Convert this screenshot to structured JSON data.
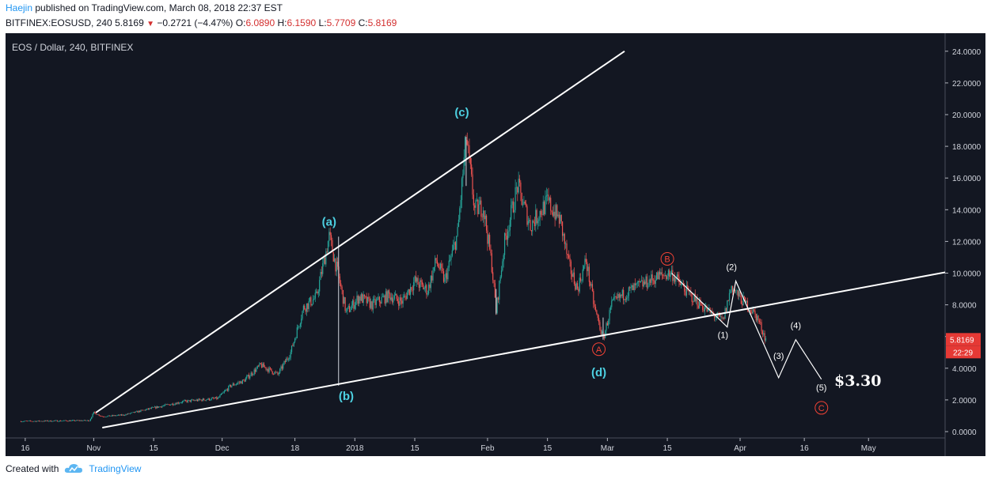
{
  "header": {
    "author": "Haejin",
    "published": "published on TradingView.com, March 08, 2018 22:37 EST",
    "symbol": "BITFINEX:EOSUSD, 240",
    "last": "5.8169",
    "change": "−0.2721 (−4.47%)",
    "o_label": "O:",
    "o_value": "6.0890",
    "h_label": "H:",
    "h_value": "6.1590",
    "l_label": "L:",
    "l_value": "5.7709",
    "c_label": "C:",
    "c_value": "5.8169"
  },
  "footer": {
    "created_with": "Created with",
    "brand": "TradingView"
  },
  "colors": {
    "background": "#131722",
    "up": "#26a69a",
    "down": "#ef5350",
    "cyan_label": "#4dd0e1",
    "red_label": "#f44336",
    "line": "#ffffff"
  },
  "chart_data": {
    "type": "candlestick",
    "title": "EOS / Dollar, 240, BITFINEX",
    "ylim": [
      -0.4,
      25.0
    ],
    "y_ticks": [
      "24.0000",
      "22.0000",
      "20.0000",
      "18.0000",
      "16.0000",
      "14.0000",
      "12.0000",
      "10.0000",
      "8.0000",
      "6.0000",
      "4.0000",
      "2.0000",
      "0.0000"
    ],
    "y_tick_values": [
      24,
      22,
      20,
      18,
      16,
      14,
      12,
      10,
      8,
      6,
      4,
      2,
      0
    ],
    "x_ticks": [
      "16",
      "Nov",
      "15",
      "Dec",
      "18",
      "2018",
      "15",
      "Feb",
      "15",
      "Mar",
      "15",
      "Apr",
      "16",
      "May"
    ],
    "x_tick_days": [
      -15,
      1,
      15,
      31,
      48,
      62,
      76,
      93,
      107,
      121,
      135,
      152,
      167,
      182
    ],
    "x_axis_start_date": "2017-10-15",
    "last_price_label": "5.8169",
    "last_time_label": "22:29",
    "price_anchors": [
      [
        -16,
        0.65
      ],
      [
        0,
        0.7
      ],
      [
        1,
        1.2
      ],
      [
        3,
        0.95
      ],
      [
        8,
        1.05
      ],
      [
        15,
        1.5
      ],
      [
        22,
        1.9
      ],
      [
        30,
        2.1
      ],
      [
        33,
        2.9
      ],
      [
        36,
        3.2
      ],
      [
        40,
        4.2
      ],
      [
        44,
        3.6
      ],
      [
        47,
        5.0
      ],
      [
        50,
        7.8
      ],
      [
        53,
        8.5
      ],
      [
        56,
        12.3
      ],
      [
        58,
        10.0
      ],
      [
        60,
        7.5
      ],
      [
        63,
        8.5
      ],
      [
        66,
        8.0
      ],
      [
        70,
        8.6
      ],
      [
        73,
        8.2
      ],
      [
        76,
        9.5
      ],
      [
        79,
        8.9
      ],
      [
        81,
        10.8
      ],
      [
        83,
        9.5
      ],
      [
        86,
        12.5
      ],
      [
        88,
        18.6
      ],
      [
        90,
        14.0
      ],
      [
        92,
        14.2
      ],
      [
        94,
        10.5
      ],
      [
        95,
        7.6
      ],
      [
        97,
        12.0
      ],
      [
        100,
        15.5
      ],
      [
        103,
        13.0
      ],
      [
        107,
        14.5
      ],
      [
        110,
        13.3
      ],
      [
        112,
        10.5
      ],
      [
        114,
        9.0
      ],
      [
        116,
        10.8
      ],
      [
        118,
        7.8
      ],
      [
        120,
        5.85
      ],
      [
        122,
        8.0
      ],
      [
        124,
        8.5
      ],
      [
        127,
        9.0
      ],
      [
        130,
        9.4
      ],
      [
        133,
        9.8
      ],
      [
        136,
        10.0
      ],
      [
        138,
        9.3
      ],
      [
        140,
        8.7
      ],
      [
        142,
        8.2
      ],
      [
        145,
        7.5
      ],
      [
        148,
        7.0
      ],
      [
        150,
        9.2
      ],
      [
        152,
        8.4
      ],
      [
        154,
        7.9
      ],
      [
        156,
        7.2
      ],
      [
        158,
        5.82
      ]
    ],
    "trendlines": [
      {
        "from": [
          1.5,
          1.2
        ],
        "to": [
          125,
          24.0
        ]
      },
      {
        "from": [
          3,
          0.25
        ],
        "to": [
          215,
          10.8
        ]
      }
    ],
    "projection_path": [
      [
        136,
        10.0
      ],
      [
        149,
        6.6
      ],
      [
        151,
        9.5
      ],
      [
        161,
        3.4
      ],
      [
        165,
        5.8
      ],
      [
        171,
        3.3
      ]
    ],
    "wave_labels": [
      {
        "text": "(a)",
        "day": 56,
        "price": 13.0,
        "color": "cyan"
      },
      {
        "text": "(b)",
        "day": 60,
        "price": 2.0,
        "color": "cyan"
      },
      {
        "text": "(c)",
        "day": 87,
        "price": 19.9,
        "color": "cyan"
      },
      {
        "text": "(d)",
        "day": 119,
        "price": 3.5,
        "color": "cyan"
      },
      {
        "text": "A",
        "day": 119,
        "price": 5.0,
        "color": "red-circle"
      },
      {
        "text": "B",
        "day": 135,
        "price": 10.7,
        "color": "red-circle"
      },
      {
        "text": "C",
        "day": 171,
        "price": 1.3,
        "color": "red-circle"
      },
      {
        "text": "(1)",
        "day": 148,
        "price": 5.9,
        "color": "white"
      },
      {
        "text": "(2)",
        "day": 150,
        "price": 10.2,
        "color": "white"
      },
      {
        "text": "(3)",
        "day": 161,
        "price": 4.6,
        "color": "white"
      },
      {
        "text": "(4)",
        "day": 165,
        "price": 6.5,
        "color": "white"
      },
      {
        "text": "(5)",
        "day": 171,
        "price": 2.6,
        "color": "white"
      }
    ],
    "target_label": "$3.30",
    "target_price": 2.9,
    "target_day": 174
  }
}
